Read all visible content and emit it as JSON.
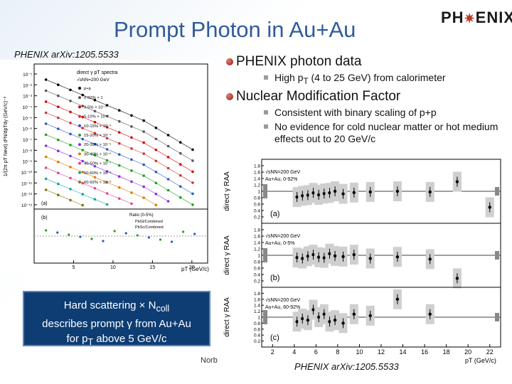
{
  "slide": {
    "title": "Prompt Photon in Au+Au",
    "logo_left": "PH",
    "logo_right": "ENIX",
    "citation_top": "PHENIX arXiv:1205.5533",
    "citation_bottom": "PHENIX arXiv:1205.5533",
    "footer_fragment": "Norb"
  },
  "bullets": [
    {
      "text": "PHENIX photon data",
      "sub": [
        "High pT (4 to 25 GeV) from calorimeter"
      ]
    },
    {
      "text": "Nuclear Modification Factor",
      "sub": [
        "Consistent with binary scaling of p+p",
        "No evidence for cold nuclear matter or hot medium effects out to 20 GeV/c"
      ]
    }
  ],
  "callout": {
    "line1": "Hard scattering × Ncoll",
    "line2": "describes prompt γ from Au+Au",
    "line3": "for pT above 5 GeV/c"
  },
  "spectra_plot": {
    "ylabel": "1/(2π pT Nevt) d²N/dpTdy (GeV/c)⁻²",
    "xlabel": "pT (GeV/c)",
    "legend_title": "direct γ pT spectra",
    "energy": "√sNN=200 GeV",
    "ratio_label": "Ratio (0-5%)",
    "ratio_legend": [
      "PbGl/Combined",
      "PbSc/Combined"
    ],
    "panel_a": "(a)",
    "panel_b": "(b)",
    "y_ticks": [
      "10⁻¹",
      "10⁻²",
      "10⁻³",
      "10⁻⁴",
      "10⁻⁵",
      "10⁻⁶",
      "10⁻⁷",
      "10⁻⁸",
      "10⁻⁹",
      "10⁻¹⁰",
      "10⁻¹¹",
      "10⁻¹²",
      "10⁻¹³"
    ],
    "x_ticks": [
      "5",
      "10",
      "15",
      "20"
    ],
    "series": [
      {
        "name": "p+p",
        "color": "#000000"
      },
      {
        "name": "0-92% × 1",
        "color": "#555555"
      },
      {
        "name": "0-5% × 10⁻¹",
        "color": "#d40000"
      },
      {
        "name": "5-10% × 10⁻²",
        "color": "#cc3333"
      },
      {
        "name": "10-15% × 10⁻³",
        "color": "#2c56c8"
      },
      {
        "name": "15-20% × 10⁻⁴",
        "color": "#1ea01e"
      },
      {
        "name": "20-30% × 10⁻⁵",
        "color": "#8a2be2"
      },
      {
        "name": "30-40% × 10⁻⁶",
        "color": "#e07b00"
      },
      {
        "name": "40-50% × 10⁻⁷",
        "color": "#e0448c"
      },
      {
        "name": "50-60% × 10⁻⁸",
        "color": "#16a3a3"
      },
      {
        "name": "60-92% × 10⁻⁹",
        "color": "#7a7a00"
      }
    ]
  },
  "raa_plot": {
    "ylabel": "direct γ RAA",
    "xlabel": "pT (GeV/c)",
    "x_ticks": [
      "2",
      "4",
      "6",
      "8",
      "10",
      "12",
      "14",
      "16",
      "18",
      "20",
      "22"
    ],
    "y_ticks": [
      "1.8",
      "1.6",
      "1.4",
      "1.2",
      "1",
      "0.8",
      "0.6",
      "0.4",
      "0.2"
    ],
    "panels": [
      {
        "label": "(a)",
        "energy": "√sNN=200 GeV",
        "system": "Au+Au, 0-92%",
        "points": [
          {
            "x": 4.25,
            "y": 0.82
          },
          {
            "x": 4.75,
            "y": 0.86
          },
          {
            "x": 5.25,
            "y": 0.88
          },
          {
            "x": 5.75,
            "y": 0.95
          },
          {
            "x": 6.25,
            "y": 0.89
          },
          {
            "x": 6.75,
            "y": 0.93
          },
          {
            "x": 7.25,
            "y": 0.95
          },
          {
            "x": 7.75,
            "y": 1.0
          },
          {
            "x": 8.5,
            "y": 0.92
          },
          {
            "x": 9.5,
            "y": 0.96
          },
          {
            "x": 11,
            "y": 0.98
          },
          {
            "x": 13.5,
            "y": 1.0
          },
          {
            "x": 16.5,
            "y": 0.98
          },
          {
            "x": 19,
            "y": 1.3
          },
          {
            "x": 22,
            "y": 0.5
          }
        ]
      },
      {
        "label": "(b)",
        "energy": "√sNN=200 GeV",
        "system": "Au+Au, 0-5%",
        "points": [
          {
            "x": 4.25,
            "y": 0.93
          },
          {
            "x": 4.75,
            "y": 0.9
          },
          {
            "x": 5.25,
            "y": 0.97
          },
          {
            "x": 5.75,
            "y": 1.02
          },
          {
            "x": 6.25,
            "y": 0.94
          },
          {
            "x": 6.75,
            "y": 0.92
          },
          {
            "x": 7.25,
            "y": 1.05
          },
          {
            "x": 7.75,
            "y": 0.98
          },
          {
            "x": 8.5,
            "y": 0.96
          },
          {
            "x": 9.5,
            "y": 1.02
          },
          {
            "x": 11,
            "y": 0.9
          },
          {
            "x": 13.5,
            "y": 0.95
          },
          {
            "x": 16.5,
            "y": 0.88
          },
          {
            "x": 19,
            "y": 0.28
          }
        ]
      },
      {
        "label": "(c)",
        "energy": "√sNN=200 GeV",
        "system": "Au+Au, 60-92%",
        "points": [
          {
            "x": 4.25,
            "y": 0.85
          },
          {
            "x": 4.75,
            "y": 0.95
          },
          {
            "x": 5.25,
            "y": 0.9
          },
          {
            "x": 5.75,
            "y": 1.25
          },
          {
            "x": 6.25,
            "y": 1.0
          },
          {
            "x": 6.75,
            "y": 1.1
          },
          {
            "x": 7.25,
            "y": 0.85
          },
          {
            "x": 7.75,
            "y": 0.9
          },
          {
            "x": 8.5,
            "y": 0.8
          },
          {
            "x": 9.5,
            "y": 1.1
          },
          {
            "x": 11,
            "y": 1.05
          },
          {
            "x": 13.5,
            "y": 1.6
          },
          {
            "x": 16.5,
            "y": 1.1
          }
        ]
      }
    ]
  }
}
